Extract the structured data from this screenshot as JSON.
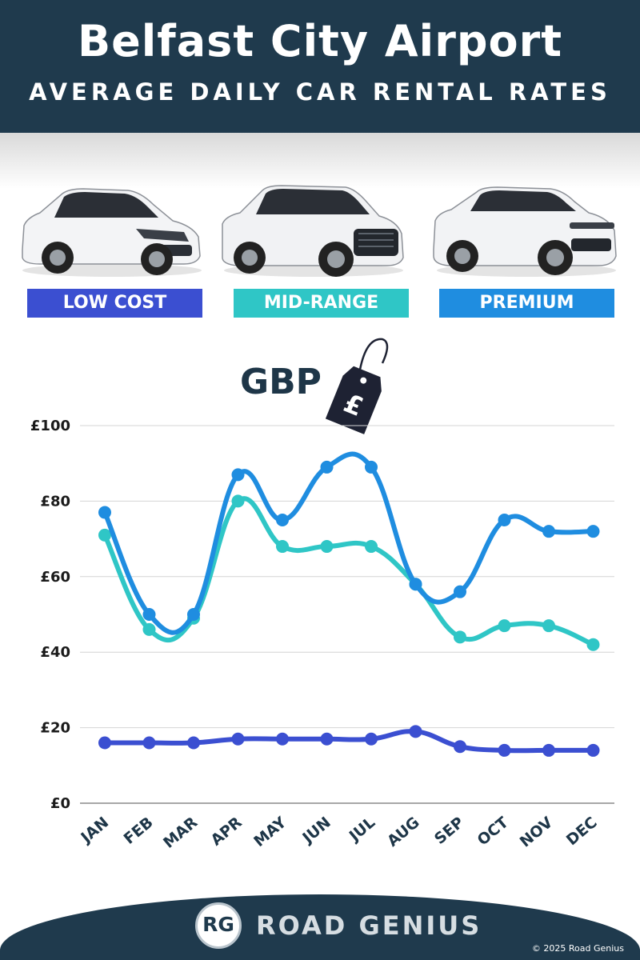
{
  "header": {
    "title": "Belfast City Airport",
    "subtitle": "AVERAGE DAILY CAR RENTAL RATES"
  },
  "categories": [
    {
      "label": "LOW COST",
      "color": "#3b4fd1"
    },
    {
      "label": "MID-RANGE",
      "color": "#2fc6c6"
    },
    {
      "label": "PREMIUM",
      "color": "#1f8de0"
    }
  ],
  "currency": {
    "label": "GBP",
    "symbol": "£",
    "tag_icon": "price-tag-icon"
  },
  "chart_data": {
    "type": "line",
    "title": "",
    "xlabel": "",
    "ylabel": "",
    "categories": [
      "JAN",
      "FEB",
      "MAR",
      "APR",
      "MAY",
      "JUN",
      "JUL",
      "AUG",
      "SEP",
      "OCT",
      "NOV",
      "DEC"
    ],
    "ylim": [
      0,
      100
    ],
    "y_ticks": [
      0,
      20,
      40,
      60,
      80,
      100
    ],
    "y_tick_labels": [
      "£0",
      "£20",
      "£40",
      "£60",
      "£80",
      "£100"
    ],
    "grid": true,
    "legend": "top (colored category badges)",
    "series": [
      {
        "name": "MID-RANGE",
        "color": "#2fc6c6",
        "values": [
          71,
          46,
          49,
          80,
          68,
          68,
          68,
          58,
          44,
          47,
          47,
          42
        ]
      },
      {
        "name": "PREMIUM",
        "color": "#1f8de0",
        "values": [
          77,
          50,
          50,
          87,
          75,
          89,
          89,
          58,
          56,
          75,
          72,
          72
        ]
      },
      {
        "name": "LOW COST",
        "color": "#3b4fd1",
        "values": [
          16,
          16,
          16,
          17,
          17,
          17,
          17,
          19,
          15,
          14,
          14,
          14
        ]
      }
    ]
  },
  "footer": {
    "logo_mark": "RG",
    "brand": "ROAD GENIUS",
    "copyright": "© 2025 Road Genius"
  }
}
